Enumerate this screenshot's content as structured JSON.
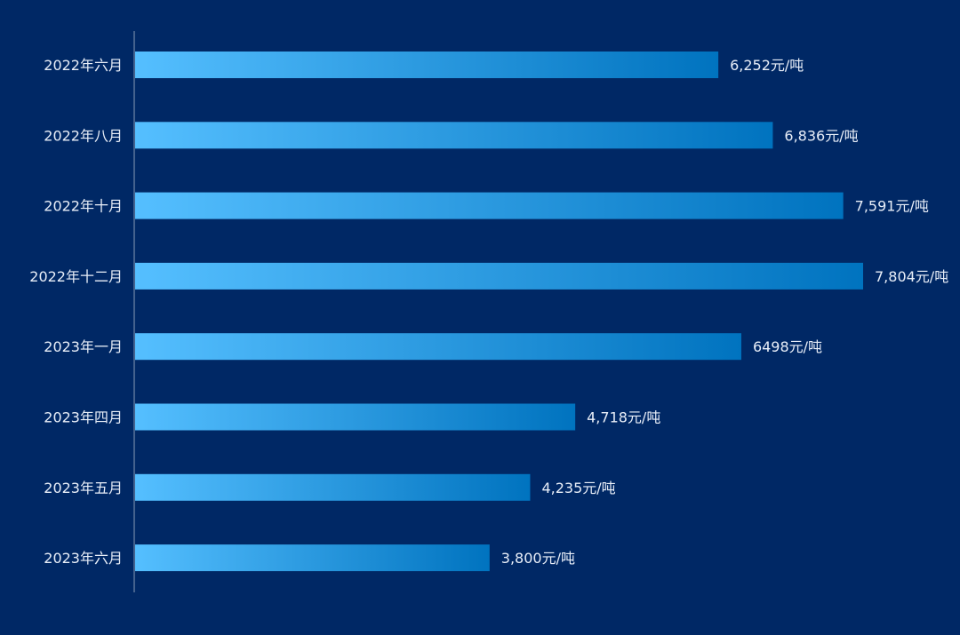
{
  "chart_data": {
    "type": "bar",
    "orientation": "horizontal",
    "categories": [
      "2022年六月",
      "2022年八月",
      "2022年十月",
      "2022年十二月",
      "2023年一月",
      "2023年四月",
      "2023年五月",
      "2023年六月"
    ],
    "values": [
      6252,
      6836,
      7591,
      7804,
      6498,
      4718,
      4235,
      3800
    ],
    "data_labels": [
      "6,252元/吨",
      "6,836元/吨",
      "7,591元/吨",
      "7,804元/吨",
      "6498元/吨",
      "4,718元/吨",
      "4,235元/吨",
      "3,800元/吨"
    ],
    "title": "",
    "xlabel": "",
    "ylabel": "",
    "xlim": [
      0,
      7804
    ],
    "grid": false,
    "colors": {
      "background": "#002865",
      "bar_start": "#55bfff",
      "bar_end": "#0073bf",
      "axis": "#8a9bb5",
      "text": "#e8eef8"
    }
  }
}
